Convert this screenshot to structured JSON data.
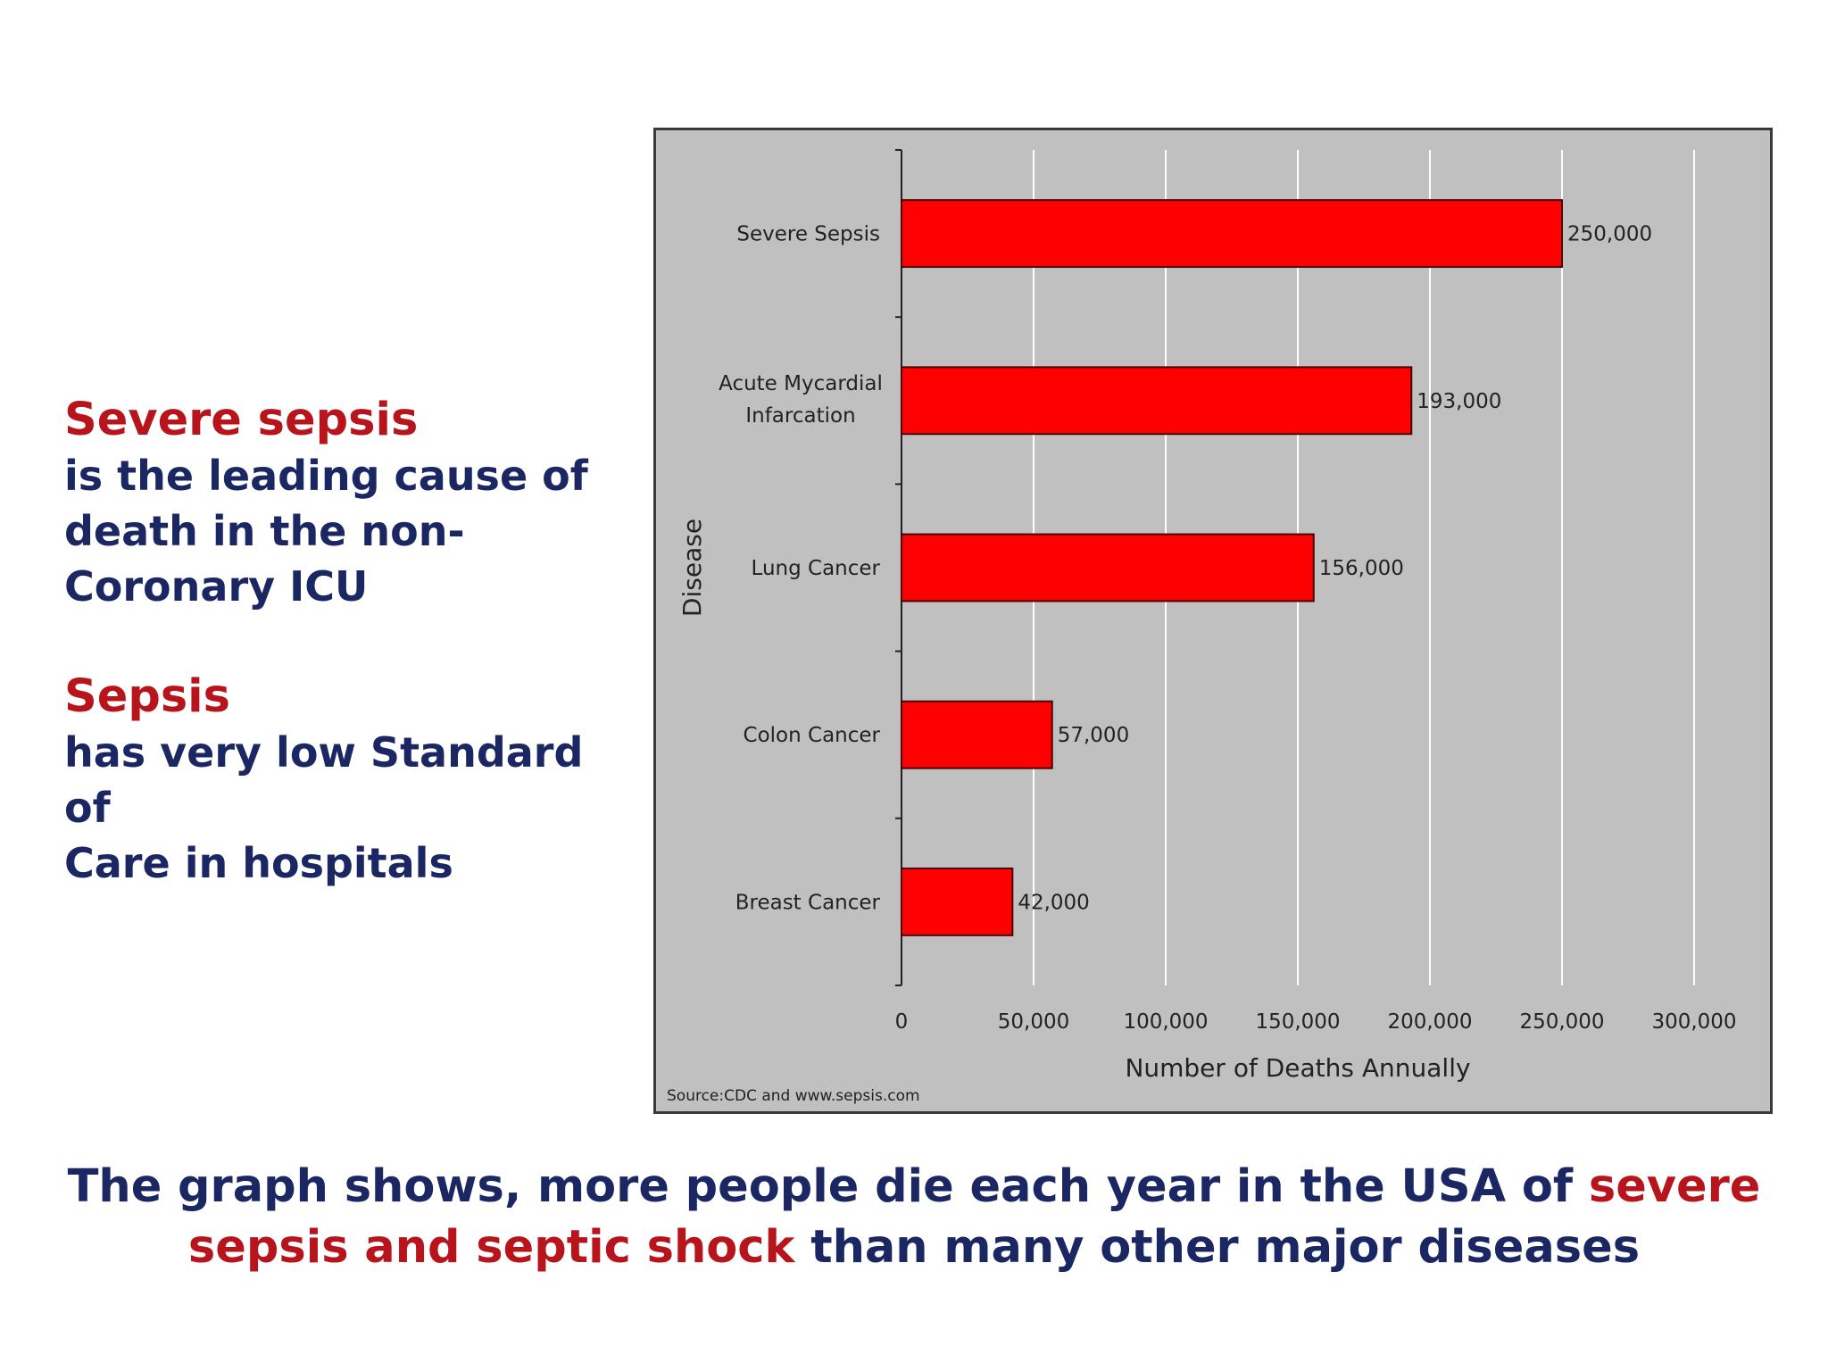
{
  "left_panel": {
    "block1": {
      "highlight": "Severe sepsis",
      "lines": [
        "is the leading cause of",
        "death in the non-",
        "Coronary ICU"
      ]
    },
    "block2": {
      "highlight": "Sepsis",
      "lines": [
        "has very low Standard of",
        "Care in hospitals"
      ]
    }
  },
  "chart_data": {
    "type": "bar",
    "orientation": "horizontal",
    "categories": [
      "Severe Sepsis",
      "Acute Mycardial Infarcation",
      "Lung Cancer",
      "Colon Cancer",
      "Breast Cancer"
    ],
    "category_lines": [
      [
        "Severe Sepsis"
      ],
      [
        "Acute Mycardial",
        "Infarcation"
      ],
      [
        "Lung Cancer"
      ],
      [
        "Colon Cancer"
      ],
      [
        "Breast Cancer"
      ]
    ],
    "values": [
      250000,
      193000,
      156000,
      57000,
      42000
    ],
    "value_labels": [
      "250,000",
      "193,000",
      "156,000",
      "57,000",
      "42,000"
    ],
    "xlabel": "Number of Deaths Annually",
    "ylabel": "Disease",
    "xlim": [
      0,
      300000
    ],
    "x_ticks": [
      0,
      50000,
      100000,
      150000,
      200000,
      250000,
      300000
    ],
    "x_tick_labels": [
      "0",
      "50,000",
      "100,000",
      "150,000",
      "200,000",
      "250,000",
      "300,000"
    ],
    "grid": "vertical",
    "source": "Source:CDC and www.sepsis.com",
    "colors": {
      "bar": "#ff0000",
      "bar_border": "#4a0000",
      "background": "#c0c0c0",
      "grid": "#ffffff"
    }
  },
  "caption": {
    "part1": "The graph shows, more people die each year in the USA of ",
    "highlight": "severe sepsis and septic shock",
    "part2": " than many other major diseases"
  }
}
